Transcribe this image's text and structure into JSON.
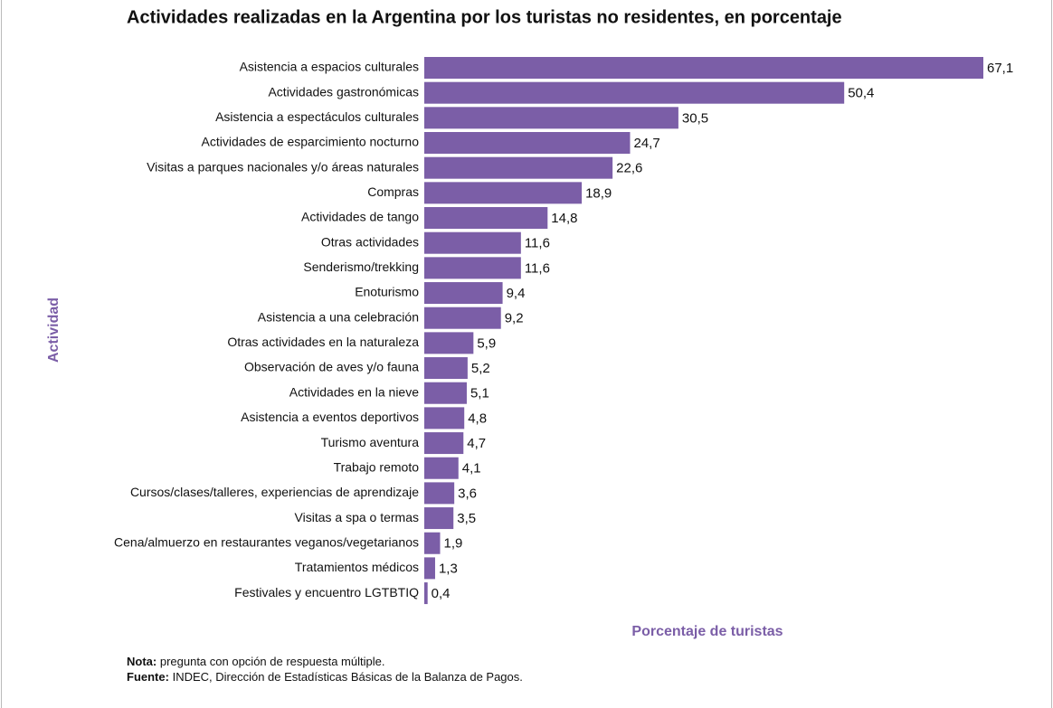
{
  "chart_data": {
    "type": "barh",
    "title": "Actividades realizadas en la Argentina por los turistas no residentes, en porcentaje",
    "y_label": "Actividad",
    "x_label": "Porcentaje de turistas",
    "color": "#7b5ea7",
    "categories": [
      "Asistencia a espacios culturales",
      "Actividades gastronómicas",
      "Asistencia a espectáculos culturales",
      "Actividades de esparcimiento nocturno",
      "Visitas a parques nacionales y/o áreas naturales",
      "Compras",
      "Actividades de tango",
      "Otras actividades",
      "Senderismo/trekking",
      "Enoturismo",
      "Asistencia a una celebración",
      "Otras actividades en la naturaleza",
      "Observación de aves y/o fauna",
      "Actividades en la nieve",
      "Asistencia a eventos deportivos",
      "Turismo aventura",
      "Trabajo remoto",
      "Cursos/clases/talleres, experiencias de aprendizaje",
      "Visitas a spa o termas",
      "Cena/almuerzo en restaurantes veganos/vegetarianos",
      "Tratamientos médicos",
      "Festivales y encuentro LGTBTIQ"
    ],
    "values": [
      67.1,
      50.4,
      30.5,
      24.7,
      22.6,
      18.9,
      14.8,
      11.6,
      11.6,
      9.4,
      9.2,
      5.9,
      5.2,
      5.1,
      4.8,
      4.7,
      4.1,
      3.6,
      3.5,
      1.9,
      1.3,
      0.4
    ],
    "value_labels": [
      "67,1",
      "50,4",
      "30,5",
      "24,7",
      "22,6",
      "18,9",
      "14,8",
      "11,6",
      "11,6",
      "9,4",
      "9,2",
      "5,9",
      "5,2",
      "5,1",
      "4,8",
      "4,7",
      "4,1",
      "3,6",
      "3,5",
      "1,9",
      "1,3",
      "0,4"
    ],
    "notes": [
      {
        "label": "Nota:",
        "text": "pregunta con opción de respuesta múltiple."
      },
      {
        "label": "Fuente:",
        "text": "INDEC, Dirección de Estadísticas Básicas de la Balanza de Pagos."
      }
    ]
  }
}
